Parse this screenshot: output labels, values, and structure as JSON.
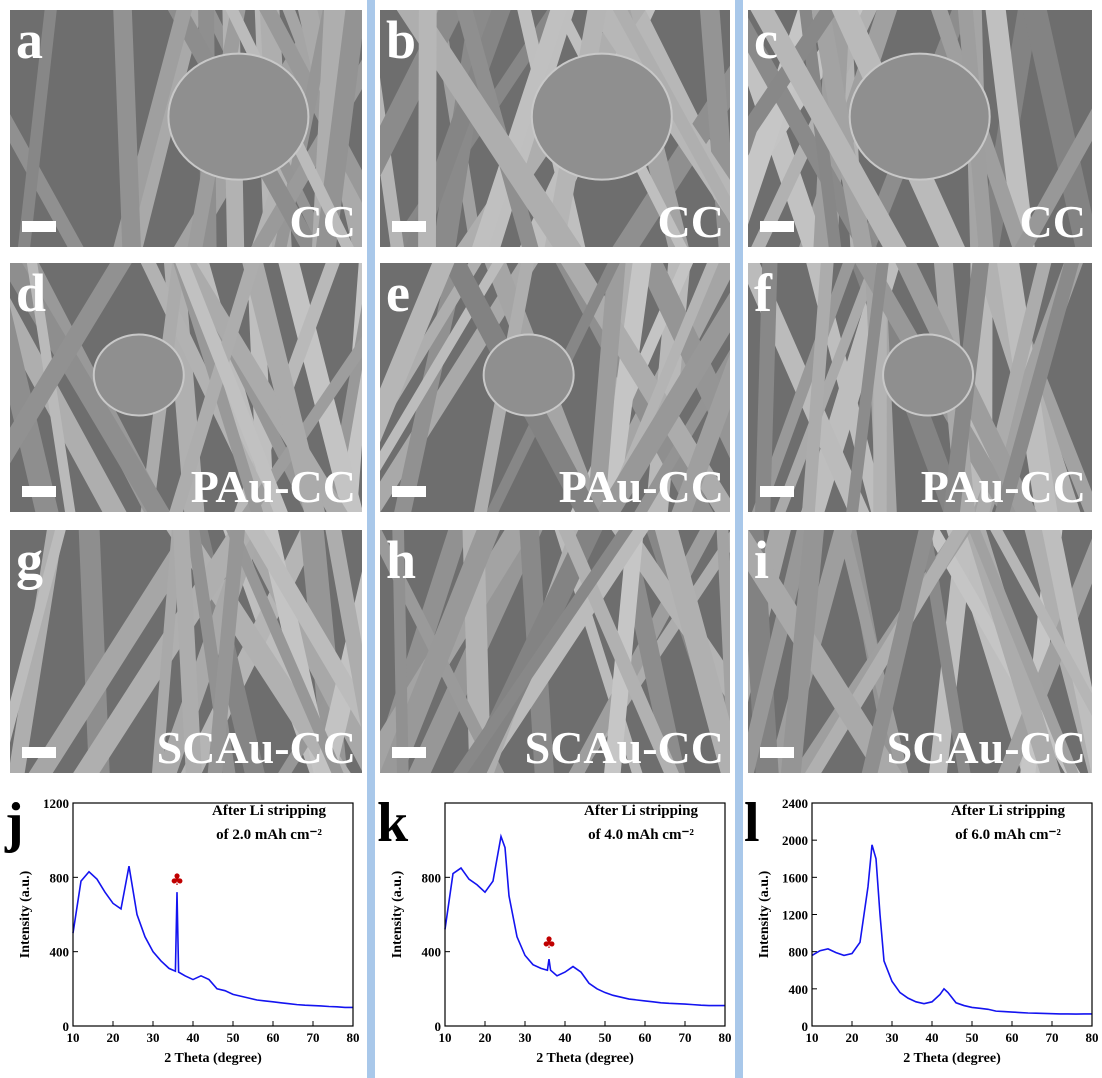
{
  "sem_panels": [
    {
      "letter": "a",
      "label": "CC"
    },
    {
      "letter": "b",
      "label": "CC"
    },
    {
      "letter": "c",
      "label": "CC"
    },
    {
      "letter": "d",
      "label": "PAu-CC"
    },
    {
      "letter": "e",
      "label": "PAu-CC"
    },
    {
      "letter": "f",
      "label": "PAu-CC"
    },
    {
      "letter": "g",
      "label": "SCAu-CC"
    },
    {
      "letter": "h",
      "label": "SCAu-CC"
    },
    {
      "letter": "i",
      "label": "SCAu-CC"
    }
  ],
  "chart_data": [
    {
      "type": "line",
      "panel_label": "j",
      "xlabel": "2 Theta (degree)",
      "ylabel": "Intensity (a.u.)",
      "annotation": [
        "After Li stripping",
        "of 2.0 mAh cm⁻²"
      ],
      "color": "#1414f0",
      "x": [
        10,
        12,
        14,
        16,
        18,
        20,
        22,
        24,
        26,
        28,
        30,
        32,
        34,
        35.6,
        36,
        36.4,
        38,
        40,
        42,
        44,
        46,
        48,
        50,
        52,
        54,
        56,
        58,
        60,
        62,
        64,
        66,
        68,
        70,
        72,
        74,
        76,
        78,
        80
      ],
      "values": [
        500,
        780,
        830,
        790,
        720,
        660,
        630,
        860,
        600,
        480,
        400,
        350,
        310,
        295,
        720,
        290,
        270,
        250,
        270,
        250,
        200,
        190,
        170,
        160,
        150,
        140,
        135,
        130,
        125,
        120,
        115,
        112,
        110,
        108,
        105,
        103,
        100,
        100
      ],
      "marker": {
        "label": "♣",
        "x": 36,
        "y": 760,
        "color": "#c00000"
      },
      "xlim": [
        10,
        80
      ],
      "ylim": [
        0,
        1200
      ],
      "xticks": [
        10,
        20,
        30,
        40,
        50,
        60,
        70,
        80
      ],
      "yticks": [
        0,
        400,
        800,
        1200
      ]
    },
    {
      "type": "line",
      "panel_label": "k",
      "xlabel": "2 Theta (degree)",
      "ylabel": "Intensity (a.u.)",
      "annotation": [
        "After Li stripping",
        "of 4.0 mAh cm⁻²"
      ],
      "color": "#1414f0",
      "x": [
        10,
        12,
        14,
        16,
        18,
        20,
        22,
        24,
        25,
        26,
        28,
        30,
        32,
        34,
        35.6,
        36,
        36.4,
        38,
        40,
        42,
        44,
        46,
        48,
        50,
        52,
        54,
        56,
        58,
        60,
        62,
        64,
        66,
        68,
        70,
        72,
        74,
        76,
        78,
        80
      ],
      "values": [
        520,
        820,
        850,
        790,
        760,
        720,
        780,
        1020,
        960,
        700,
        480,
        380,
        330,
        310,
        300,
        360,
        300,
        270,
        290,
        320,
        290,
        230,
        200,
        180,
        165,
        155,
        145,
        140,
        135,
        130,
        125,
        122,
        120,
        118,
        115,
        112,
        110,
        110,
        110
      ],
      "marker": {
        "label": "♣",
        "x": 36,
        "y": 420,
        "color": "#c00000"
      },
      "xlim": [
        10,
        80
      ],
      "ylim": [
        0,
        1200
      ],
      "xticks": [
        10,
        20,
        30,
        40,
        50,
        60,
        70,
        80
      ],
      "yticks": [
        0,
        400,
        800
      ]
    },
    {
      "type": "line",
      "panel_label": "l",
      "xlabel": "2 Theta (degree)",
      "ylabel": "Intensity (a.u.)",
      "annotation": [
        "After Li stripping",
        "of 6.0 mAh cm⁻²"
      ],
      "color": "#1414f0",
      "x": [
        10,
        12,
        14,
        16,
        18,
        20,
        22,
        24,
        25,
        26,
        27,
        28,
        30,
        32,
        34,
        36,
        38,
        40,
        42,
        43,
        44,
        46,
        48,
        50,
        52,
        54,
        56,
        58,
        60,
        62,
        64,
        66,
        68,
        70,
        72,
        74,
        76,
        78,
        80
      ],
      "values": [
        760,
        810,
        830,
        790,
        760,
        780,
        900,
        1500,
        1950,
        1800,
        1200,
        700,
        480,
        360,
        300,
        260,
        240,
        260,
        340,
        400,
        360,
        250,
        220,
        200,
        190,
        180,
        160,
        155,
        150,
        145,
        140,
        138,
        135,
        133,
        130,
        130,
        128,
        130,
        130
      ],
      "xlim": [
        10,
        80
      ],
      "ylim": [
        0,
        2400
      ],
      "xticks": [
        10,
        20,
        30,
        40,
        50,
        60,
        70,
        80
      ],
      "yticks": [
        0,
        400,
        800,
        1200,
        1600,
        2000,
        2400
      ]
    }
  ]
}
